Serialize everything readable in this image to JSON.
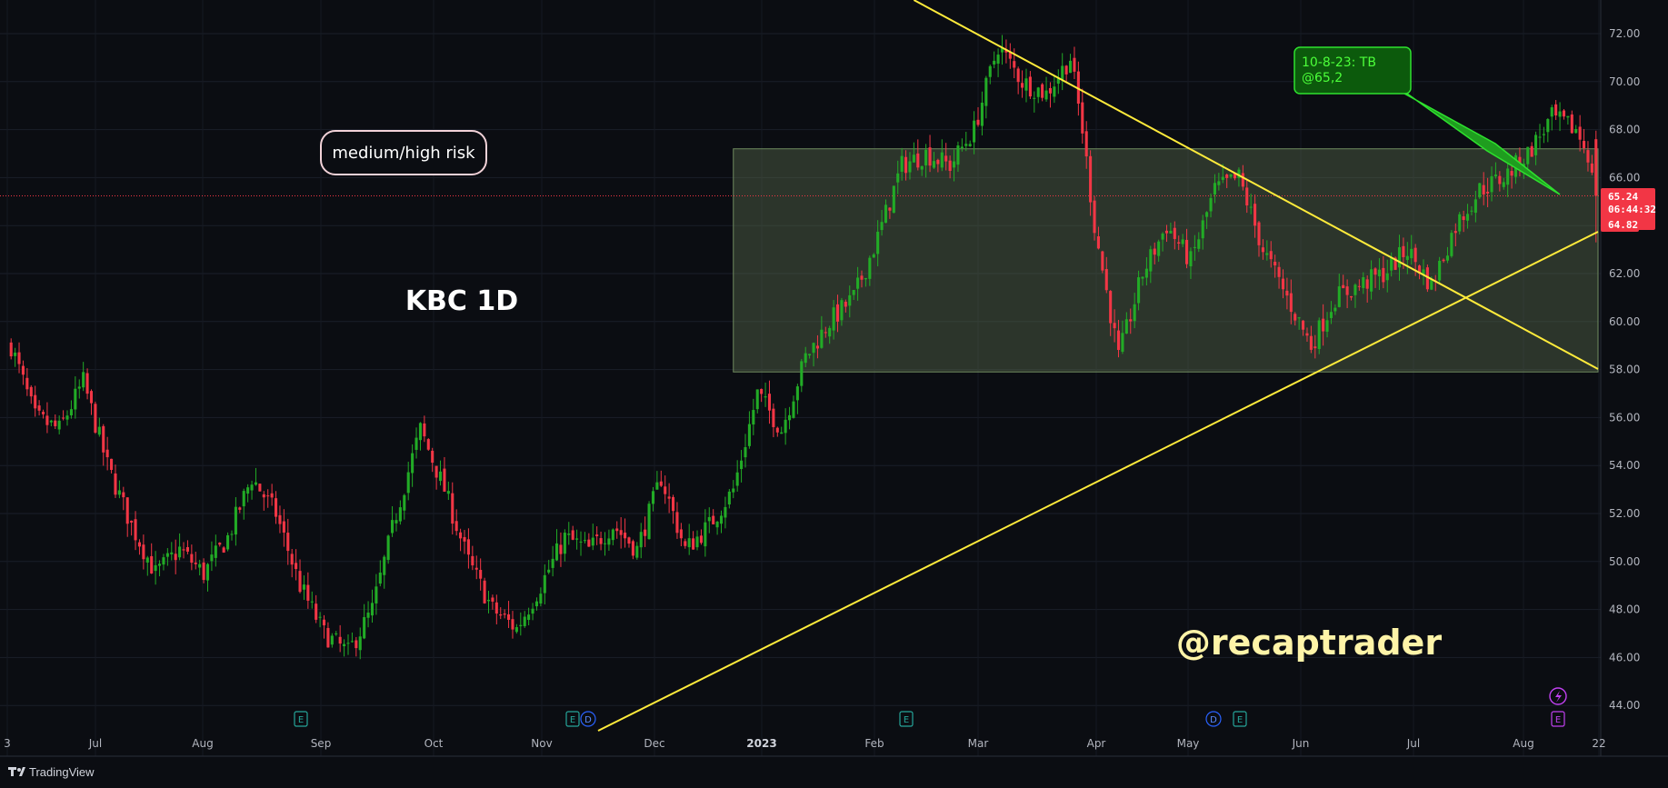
{
  "chart_data": {
    "type": "candlestick",
    "symbol_label": "KBC 1D",
    "risk_label": "medium/high risk",
    "watermark": "@recaptrader",
    "brand": "TradingView",
    "annotation": {
      "line1": "10-8-23: TB",
      "line2": "@65,2"
    },
    "y_axis": {
      "ticks": [
        "72.00",
        "70.00",
        "68.00",
        "66.00",
        "64.00",
        "62.00",
        "60.00",
        "58.00",
        "56.00",
        "54.00",
        "52.00",
        "50.00",
        "48.00",
        "46.00",
        "44.00"
      ],
      "range": [
        43.0,
        73.5
      ]
    },
    "x_axis": {
      "labels": [
        "3",
        "Jul",
        "Aug",
        "Sep",
        "Oct",
        "Nov",
        "Dec",
        "2023",
        "Feb",
        "Mar",
        "Apr",
        "May",
        "Jun",
        "Jul",
        "Aug",
        "22"
      ]
    },
    "price_badges": {
      "last": "65.24",
      "countdown": "06:44:32",
      "low": "64.82"
    },
    "current_price": 65.24,
    "range_box": {
      "low": 57.9,
      "high": 67.2
    },
    "events": [
      "E",
      "E",
      "D",
      "E",
      "D",
      "E",
      "E"
    ],
    "colors": {
      "up": "#22ab26",
      "down": "#f23645",
      "trendline": "#ffeb3b",
      "price_line": "#f23645",
      "box": "#5a6e4e",
      "note": "#22c322"
    },
    "series": [
      {
        "name": "path",
        "values": [
          [
            0,
            59.0
          ],
          [
            6,
            56.0
          ],
          [
            12,
            55.5
          ],
          [
            18,
            57.5
          ],
          [
            24,
            54.0
          ],
          [
            30,
            51.5
          ],
          [
            36,
            49.5
          ],
          [
            42,
            50.5
          ],
          [
            48,
            49.5
          ],
          [
            54,
            51.0
          ],
          [
            60,
            53.5
          ],
          [
            66,
            52.0
          ],
          [
            72,
            49.0
          ],
          [
            78,
            47.0
          ],
          [
            84,
            46.2
          ],
          [
            90,
            48.0
          ],
          [
            96,
            52.0
          ],
          [
            102,
            55.5
          ],
          [
            108,
            53.0
          ],
          [
            114,
            50.0
          ],
          [
            120,
            48.0
          ],
          [
            126,
            47.2
          ],
          [
            132,
            49.0
          ],
          [
            138,
            51.0
          ],
          [
            144,
            50.5
          ],
          [
            150,
            51.5
          ],
          [
            156,
            50.5
          ],
          [
            162,
            53.5
          ],
          [
            168,
            50.5
          ],
          [
            174,
            51.5
          ],
          [
            180,
            53.0
          ],
          [
            186,
            57.0
          ],
          [
            192,
            55.5
          ],
          [
            198,
            58.5
          ],
          [
            204,
            60.0
          ],
          [
            210,
            61.0
          ],
          [
            216,
            63.5
          ],
          [
            222,
            66.5
          ],
          [
            228,
            67.0
          ],
          [
            234,
            66.5
          ],
          [
            240,
            68.0
          ],
          [
            246,
            71.5
          ],
          [
            252,
            70.0
          ],
          [
            258,
            69.5
          ],
          [
            264,
            71.0
          ],
          [
            267,
            68.0
          ],
          [
            270,
            64.0
          ],
          [
            276,
            58.5
          ],
          [
            282,
            62.0
          ],
          [
            288,
            64.0
          ],
          [
            294,
            62.5
          ],
          [
            300,
            65.5
          ],
          [
            306,
            66.0
          ],
          [
            312,
            63.0
          ],
          [
            318,
            61.0
          ],
          [
            324,
            59.0
          ],
          [
            330,
            61.0
          ],
          [
            336,
            61.5
          ],
          [
            342,
            62.0
          ],
          [
            348,
            63.0
          ],
          [
            354,
            61.5
          ],
          [
            360,
            64.0
          ],
          [
            366,
            65.5
          ],
          [
            372,
            66.0
          ],
          [
            378,
            67.0
          ],
          [
            384,
            68.5
          ],
          [
            390,
            68.0
          ],
          [
            393,
            67.0
          ],
          [
            395,
            64.9
          ]
        ]
      }
    ]
  }
}
